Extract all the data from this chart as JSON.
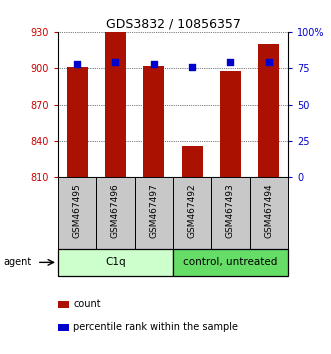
{
  "title": "GDS3832 / 10856357",
  "samples": [
    "GSM467495",
    "GSM467496",
    "GSM467497",
    "GSM467492",
    "GSM467493",
    "GSM467494"
  ],
  "counts": [
    901,
    930,
    902,
    836,
    898,
    920
  ],
  "percentile_ranks": [
    78,
    79,
    78,
    76,
    79,
    79
  ],
  "groups": [
    {
      "label": "C1q",
      "indices": [
        0,
        1,
        2
      ],
      "color": "#ccffcc"
    },
    {
      "label": "control, untreated",
      "indices": [
        3,
        4,
        5
      ],
      "color": "#66dd66"
    }
  ],
  "ylim_left": [
    810,
    930
  ],
  "ylim_right": [
    0,
    100
  ],
  "yticks_left": [
    810,
    840,
    870,
    900,
    930
  ],
  "yticks_right": [
    0,
    25,
    50,
    75,
    100
  ],
  "bar_color": "#aa1100",
  "dot_color": "#0000cc",
  "left_label_color": "#cc0000",
  "right_label_color": "#0000cc",
  "bar_width": 0.55,
  "agent_label": "agent",
  "legend_count_label": "count",
  "legend_pct_label": "percentile rank within the sample",
  "xlabels_bg": "#c8c8c8",
  "title_fontsize": 9
}
